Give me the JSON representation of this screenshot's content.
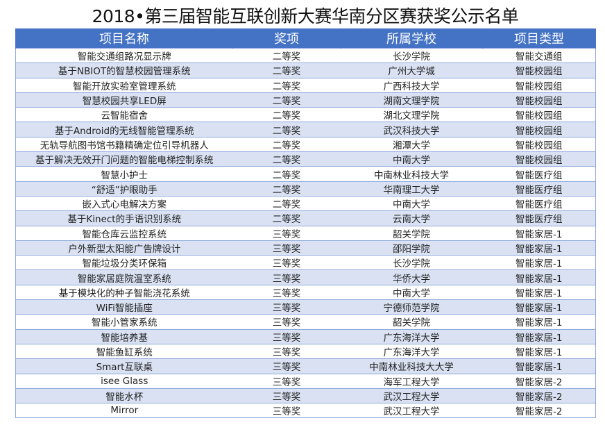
{
  "title": "2018•第三届智能互联创新大赛华南分区赛获奖公示名单",
  "columns": [
    "项目名称",
    "奖项",
    "所属学校",
    "项目类型"
  ],
  "rows": [
    [
      "智能交通组路况显示牌",
      "二等奖",
      "长沙学院",
      "智能交通组"
    ],
    [
      "基于NBIOT的智慧校园管理系统",
      "二等奖",
      "广州大学城",
      "智能校园组"
    ],
    [
      "智能开放实验室管理系统",
      "二等奖",
      "广西科技大学",
      "智能校园组"
    ],
    [
      "智慧校园共享LED屏",
      "二等奖",
      "湖南文理学院",
      "智能校园组"
    ],
    [
      "云智能宿舍",
      "二等奖",
      "湖北文理学院",
      "智能校园组"
    ],
    [
      "基于Android的无线智能管理系统",
      "二等奖",
      "武汉科技大学",
      "智能校园组"
    ],
    [
      "无轨导航图书馆书籍精确定位引导机器人",
      "二等奖",
      "湘潭大学",
      "智能校园组"
    ],
    [
      "基于解决无效开门问题的智能电梯控制系统",
      "二等奖",
      "中南大学",
      "智能校园组"
    ],
    [
      "智慧小护士",
      "二等奖",
      "中南林业科技大学",
      "智能医疗组"
    ],
    [
      "“舒适”护眼助手",
      "二等奖",
      "华南理工大学",
      "智能医疗组"
    ],
    [
      "嵌入式心电解决方案",
      "二等奖",
      "中南大学",
      "智能医疗组"
    ],
    [
      "基于Kinect的手语识别系统",
      "二等奖",
      "云南大学",
      "智能医疗组"
    ],
    [
      "智能仓库云监控系统",
      "三等奖",
      "韶关学院",
      "智能家居-1"
    ],
    [
      "户外新型太阳能广告牌设计",
      "三等奖",
      "邵阳学院",
      "智能家居-1"
    ],
    [
      "智能垃圾分类环保箱",
      "三等奖",
      "长沙学院",
      "智能家居-1"
    ],
    [
      "智能家居庭院温室系统",
      "三等奖",
      "华侨大学",
      "智能家居-1"
    ],
    [
      "基于模块化的种子智能浇花系统",
      "三等奖",
      "中南大学",
      "智能家居-1"
    ],
    [
      "WiFi智能插座",
      "三等奖",
      "宁德师范学院",
      "智能家居-1"
    ],
    [
      "智能小管家系统",
      "三等奖",
      "韶关学院",
      "智能家居-1"
    ],
    [
      "智能培养基",
      "三等奖",
      "广东海洋大学",
      "智能家居-1"
    ],
    [
      "智能鱼缸系统",
      "三等奖",
      "广东海洋大学",
      "智能家居-1"
    ],
    [
      "Smart互联桌",
      "三等奖",
      "中南林业科技大大学",
      "智能家居-1"
    ],
    [
      "isee Glass",
      "三等奖",
      "海军工程大学",
      "智能家居-2"
    ],
    [
      "智能水杯",
      "三等奖",
      "武汉工程大学",
      "智能家居-2"
    ],
    [
      "Mirror",
      "三等奖",
      "武汉工程大学",
      "智能家居-2"
    ]
  ],
  "colors": {
    "header": "#4472C4",
    "stripe": "#D9E1F2",
    "border": "#8EA9DB"
  }
}
